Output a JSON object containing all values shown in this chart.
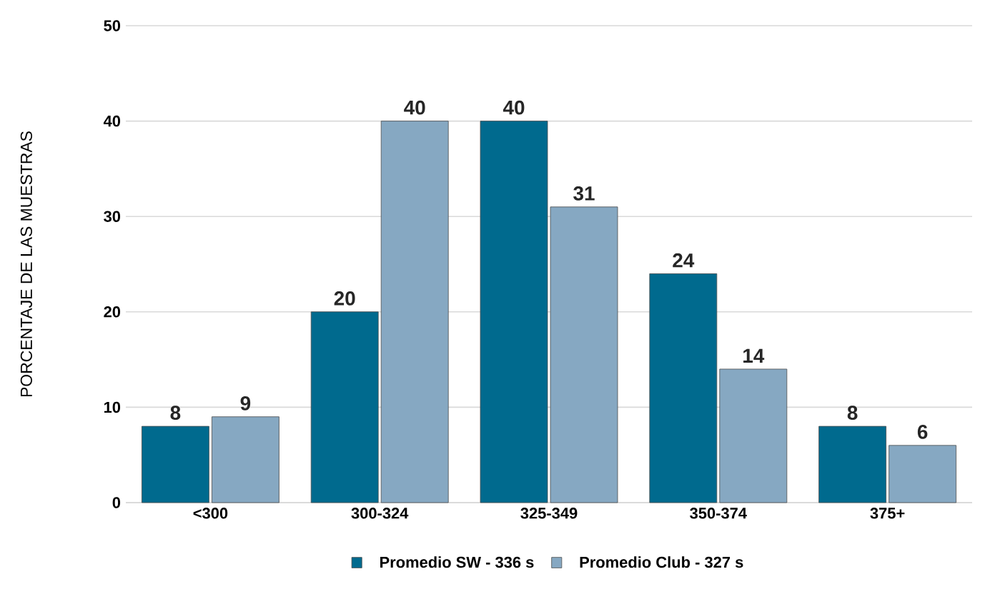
{
  "chart_data": {
    "type": "bar",
    "ylabel": "PORCENTAJE DE LAS MUESTRAS",
    "categories": [
      "<300",
      "300-324",
      "325-349",
      "350-374",
      "375+"
    ],
    "series": [
      {
        "name": "Promedio SW - 336 s",
        "color": "#006a8e",
        "values": [
          8,
          20,
          40,
          24,
          8
        ]
      },
      {
        "name": "Promedio Club - 327 s",
        "color": "#86a8c2",
        "values": [
          9,
          40,
          31,
          14,
          6
        ]
      }
    ],
    "ylim": [
      0,
      50
    ],
    "yticks": [
      0,
      10,
      20,
      30,
      40,
      50
    ],
    "grid": "y",
    "legend": "bottom",
    "data_labels": true
  }
}
